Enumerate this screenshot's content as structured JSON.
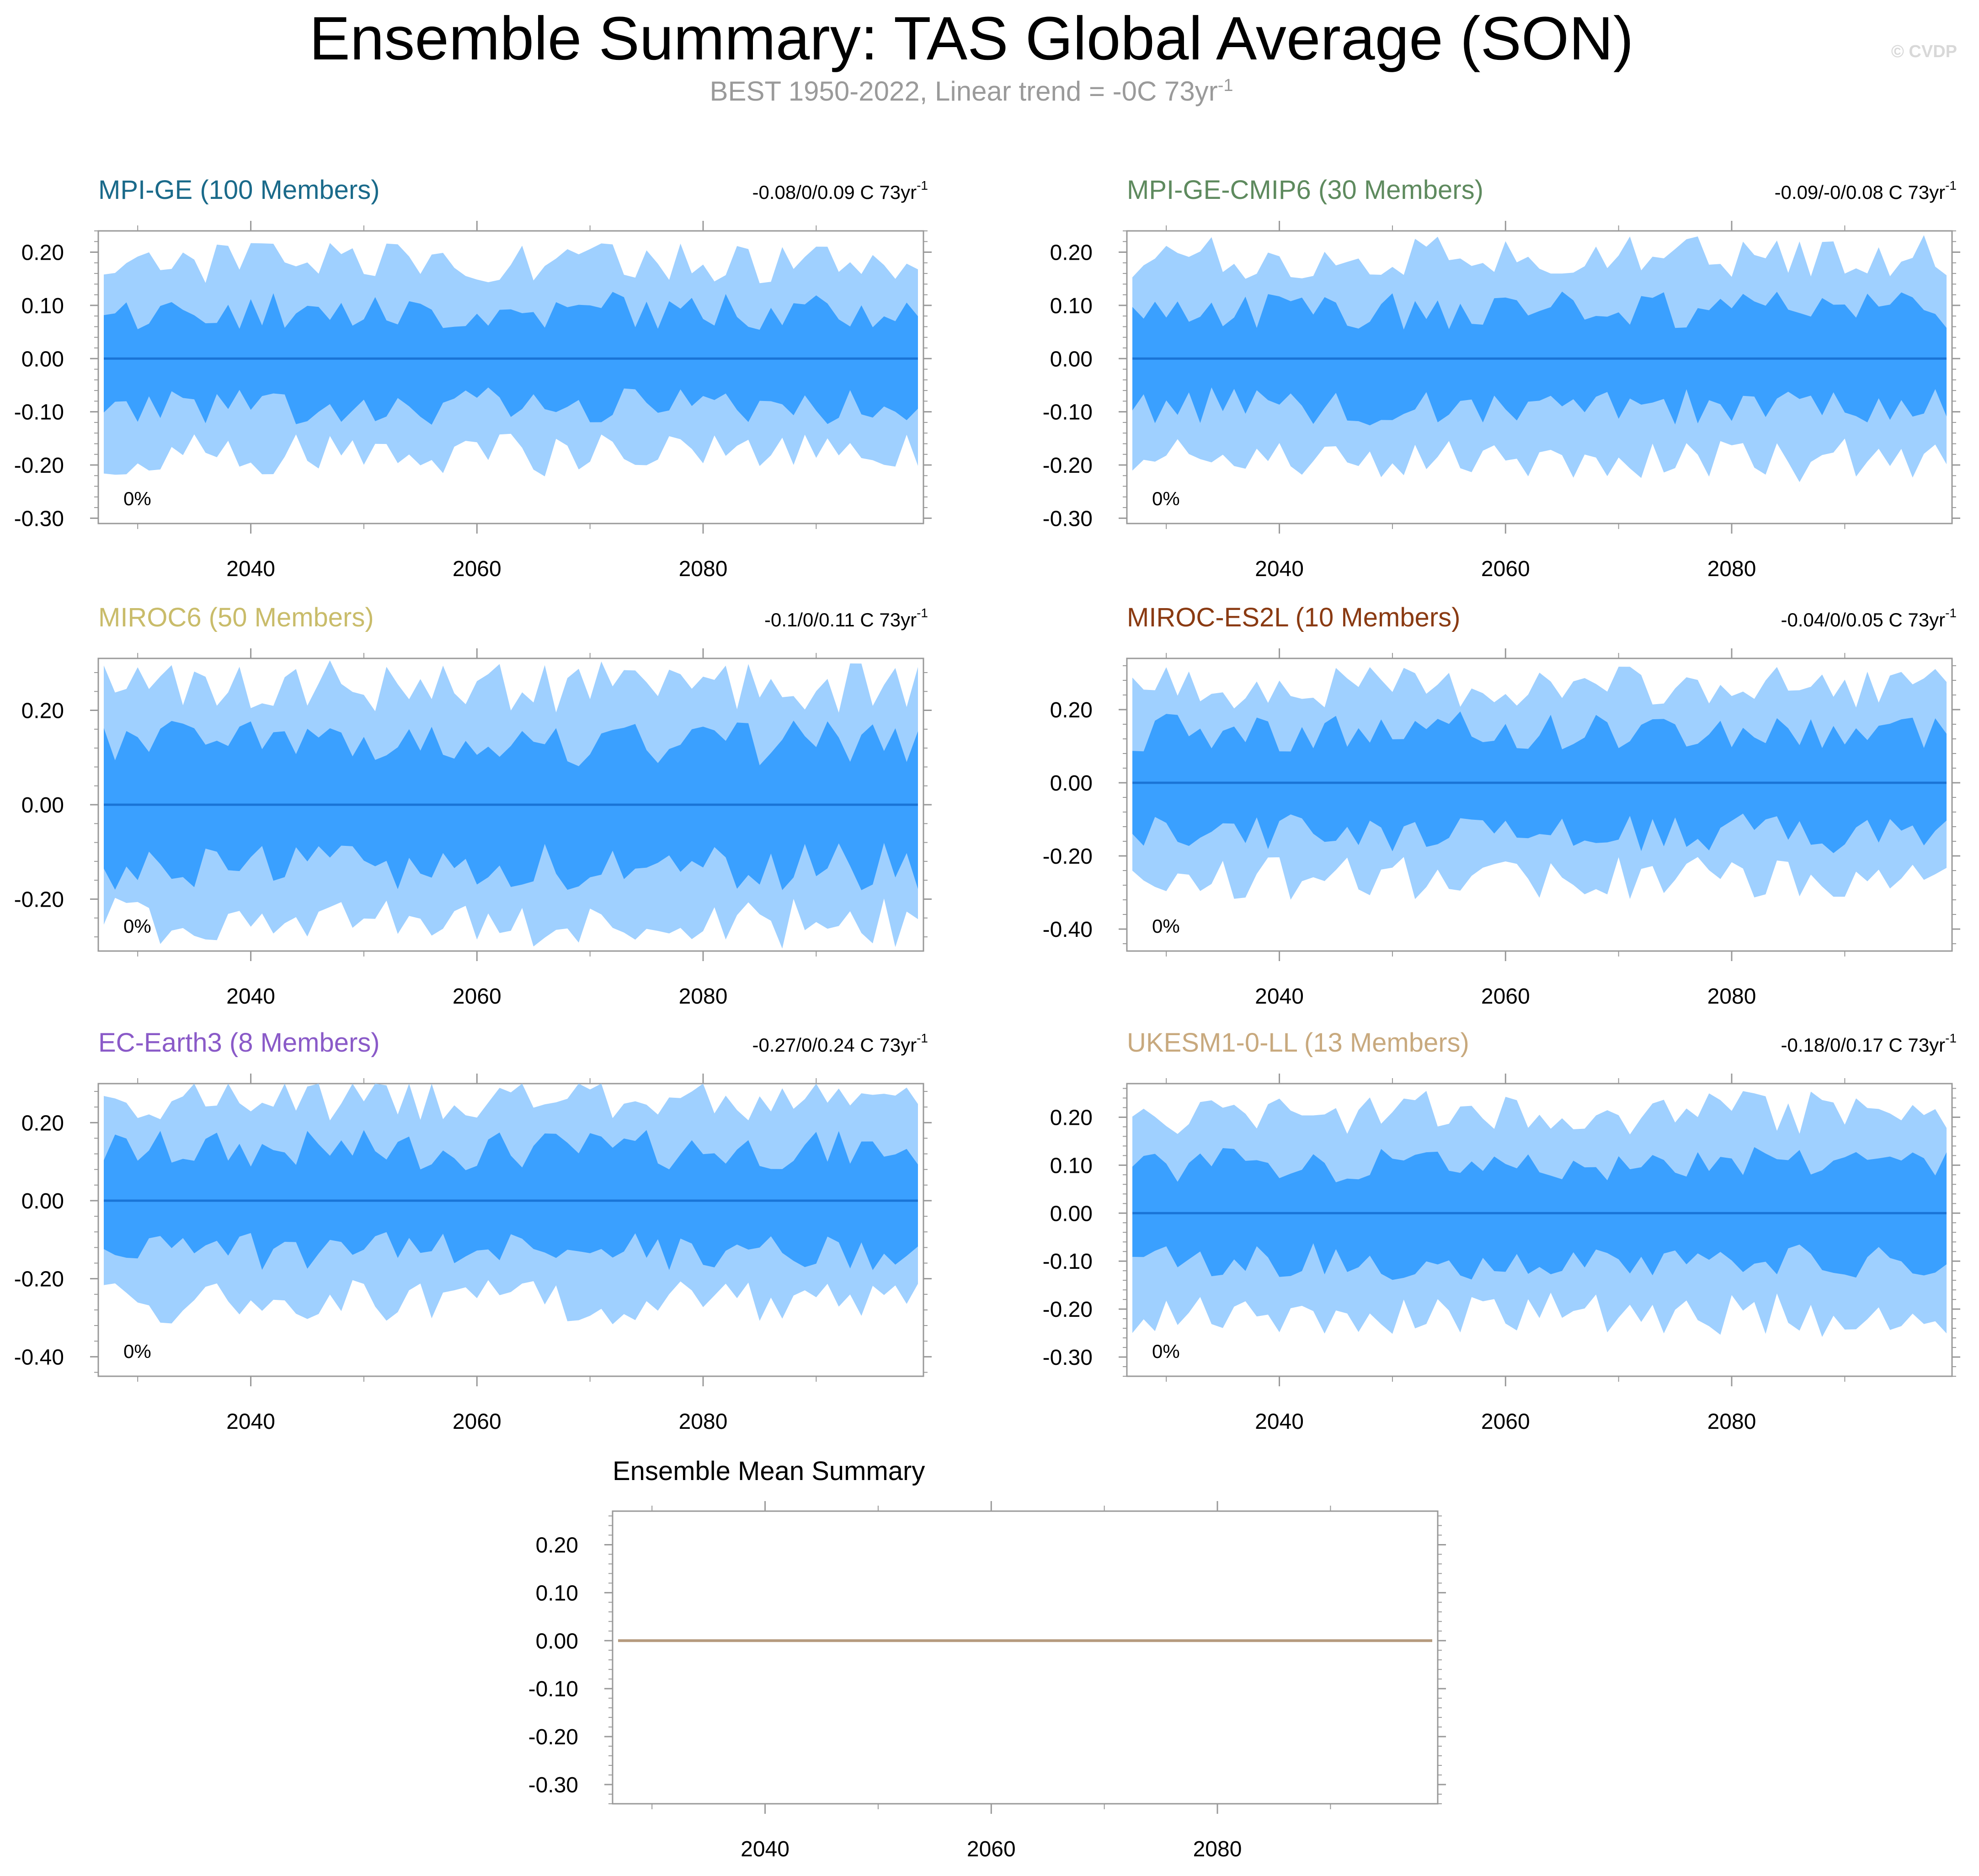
{
  "page": {
    "title": "Ensemble Summary: TAS Global Average (SON)",
    "subtitle_main": "BEST 1950-2022, Linear trend = -0C 73yr",
    "subtitle_sup": "-1",
    "watermark": "© CVDP"
  },
  "colors": {
    "outer_band": "#9fd0ff",
    "inner_band": "#3aa0ff",
    "mean_line": "#1a74d6",
    "axis": "#999999",
    "summary_line": "#b59a7e"
  },
  "chart_data": [
    {
      "type": "area",
      "title": "MPI-GE (100 Members)",
      "title_color": "#1a6a8a",
      "stats_main": "-0.08/0/0.09 C 73yr",
      "stats_sup": "-1",
      "percent_label": "0%",
      "x_range": [
        2027,
        2099
      ],
      "x_ticks": [
        2040,
        2060,
        2080
      ],
      "x_tick_labels": [
        "2040",
        "2060",
        "2080"
      ],
      "ylim": [
        -0.31,
        0.24
      ],
      "y_ticks": [
        0.2,
        0.1,
        0.0,
        -0.1,
        -0.2,
        -0.3
      ],
      "y_tick_labels": [
        "0.20",
        "0.10",
        "0.00",
        "-0.10",
        "-0.20",
        "-0.30"
      ],
      "series": [
        {
          "name": "ensemble mean",
          "values": [
            0.0,
            0.0
          ]
        },
        {
          "name": "inner band",
          "amplitude": 0.09
        },
        {
          "name": "outer band",
          "amplitude": 0.18
        }
      ]
    },
    {
      "type": "area",
      "title": "MPI-GE-CMIP6 (30 Members)",
      "title_color": "#5e8a5e",
      "stats_main": "-0.09/-0/0.08 C 73yr",
      "stats_sup": "-1",
      "percent_label": "0%",
      "x_range": [
        2027,
        2099
      ],
      "x_ticks": [
        2040,
        2060,
        2080
      ],
      "x_tick_labels": [
        "2040",
        "2060",
        "2080"
      ],
      "ylim": [
        -0.31,
        0.24
      ],
      "y_ticks": [
        0.2,
        0.1,
        0.0,
        -0.1,
        -0.2,
        -0.3
      ],
      "y_tick_labels": [
        "0.20",
        "0.10",
        "0.00",
        "-0.10",
        "-0.20",
        "-0.30"
      ],
      "series": [
        {
          "name": "ensemble mean",
          "values": [
            0.0,
            0.0
          ]
        },
        {
          "name": "inner band",
          "amplitude": 0.09
        },
        {
          "name": "outer band",
          "amplitude": 0.19
        }
      ]
    },
    {
      "type": "area",
      "title": "MIROC6 (50 Members)",
      "title_color": "#c9bc6a",
      "stats_main": "-0.1/0/0.11 C 73yr",
      "stats_sup": "-1",
      "percent_label": "0%",
      "x_range": [
        2027,
        2099
      ],
      "x_ticks": [
        2040,
        2060,
        2080
      ],
      "x_tick_labels": [
        "2040",
        "2060",
        "2080"
      ],
      "ylim": [
        -0.31,
        0.31
      ],
      "y_ticks": [
        0.2,
        0.0,
        -0.2
      ],
      "y_tick_labels": [
        "0.20",
        "0.00",
        "-0.20"
      ],
      "series": [
        {
          "name": "ensemble mean",
          "values": [
            0.0,
            0.0
          ]
        },
        {
          "name": "inner band",
          "amplitude": 0.13
        },
        {
          "name": "outer band",
          "amplitude": 0.25
        }
      ]
    },
    {
      "type": "area",
      "title": "MIROC-ES2L (10 Members)",
      "title_color": "#8a3a12",
      "stats_main": "-0.04/0/0.05 C 73yr",
      "stats_sup": "-1",
      "percent_label": "0%",
      "x_range": [
        2027,
        2099
      ],
      "x_ticks": [
        2040,
        2060,
        2080
      ],
      "x_tick_labels": [
        "2040",
        "2060",
        "2080"
      ],
      "ylim": [
        -0.46,
        0.34
      ],
      "y_ticks": [
        0.2,
        0.0,
        -0.2,
        -0.4
      ],
      "y_tick_labels": [
        "0.20",
        "0.00",
        "-0.20",
        "-0.40"
      ],
      "series": [
        {
          "name": "ensemble mean",
          "values": [
            0.0,
            0.0
          ]
        },
        {
          "name": "inner band",
          "amplitude": 0.14
        },
        {
          "name": "outer band",
          "amplitude": 0.26
        }
      ]
    },
    {
      "type": "area",
      "title": "EC-Earth3 (8 Members)",
      "title_color": "#8a5ac8",
      "stats_main": "-0.27/0/0.24 C 73yr",
      "stats_sup": "-1",
      "percent_label": "0%",
      "x_range": [
        2027,
        2099
      ],
      "x_ticks": [
        2040,
        2060,
        2080
      ],
      "x_tick_labels": [
        "2040",
        "2060",
        "2080"
      ],
      "ylim": [
        -0.45,
        0.3
      ],
      "y_ticks": [
        0.2,
        0.0,
        -0.2,
        -0.4
      ],
      "y_tick_labels": [
        "0.20",
        "0.00",
        "-0.20",
        "-0.40"
      ],
      "series": [
        {
          "name": "ensemble mean",
          "values": [
            0.0,
            0.0
          ]
        },
        {
          "name": "inner band",
          "amplitude": 0.13
        },
        {
          "name": "outer band",
          "amplitude": 0.26
        }
      ]
    },
    {
      "type": "area",
      "title": "UKESM1-0-LL (13 Members)",
      "title_color": "#c8a97e",
      "stats_main": "-0.18/0/0.17 C 73yr",
      "stats_sup": "-1",
      "percent_label": "0%",
      "x_range": [
        2027,
        2099
      ],
      "x_ticks": [
        2040,
        2060,
        2080
      ],
      "x_tick_labels": [
        "2040",
        "2060",
        "2080"
      ],
      "ylim": [
        -0.34,
        0.27
      ],
      "y_ticks": [
        0.2,
        0.1,
        0.0,
        -0.1,
        -0.2,
        -0.3
      ],
      "y_tick_labels": [
        "0.20",
        "0.10",
        "0.00",
        "-0.10",
        "-0.20",
        "-0.30"
      ],
      "series": [
        {
          "name": "ensemble mean",
          "values": [
            0.0,
            0.0
          ]
        },
        {
          "name": "inner band",
          "amplitude": 0.1
        },
        {
          "name": "outer band",
          "amplitude": 0.21
        }
      ]
    },
    {
      "type": "line",
      "title": "Ensemble Mean Summary",
      "x_range": [
        2027,
        2099
      ],
      "x_ticks": [
        2040,
        2060,
        2080
      ],
      "x_tick_labels": [
        "2040",
        "2060",
        "2080"
      ],
      "ylim": [
        -0.34,
        0.27
      ],
      "y_ticks": [
        0.2,
        0.1,
        0.0,
        -0.1,
        -0.2,
        -0.3
      ],
      "y_tick_labels": [
        "0.20",
        "0.10",
        "0.00",
        "-0.10",
        "-0.20",
        "-0.30"
      ],
      "series": [
        {
          "name": "ensemble mean summary",
          "values": [
            0.0,
            0.0
          ]
        }
      ]
    }
  ]
}
